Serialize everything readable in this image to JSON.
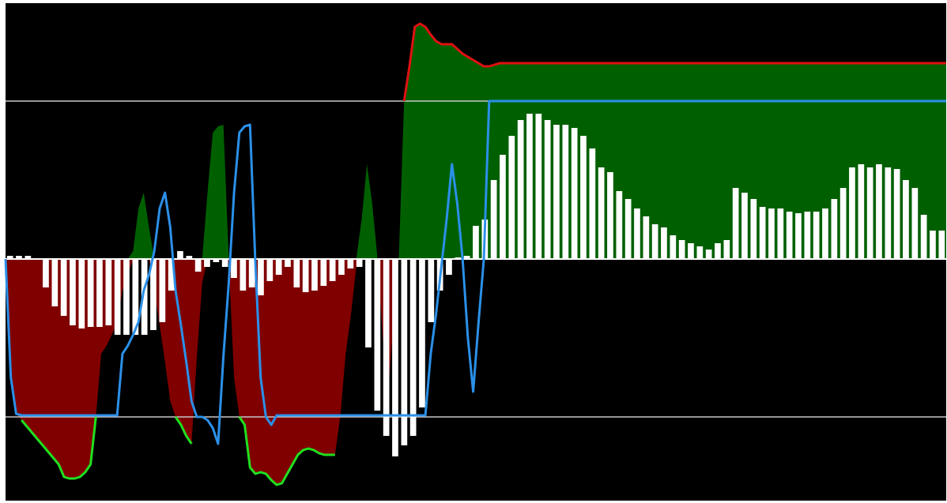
{
  "chart_data": {
    "type": "area",
    "grid": false,
    "legend": "none",
    "ylim": [
      -150,
      150
    ],
    "reference_lines": [
      100,
      -100
    ],
    "colors": {
      "background": "#000000",
      "positive_fill": "#006000",
      "negative_fill": "#800000",
      "main_line": "#2b90e8",
      "overbought_line": "#e01010",
      "oversold_line": "#20e020",
      "histogram": "#ffffff",
      "reference": "#c8c8c8",
      "zero_line": "#ffffff"
    },
    "series": [
      {
        "role": "oscillator",
        "values": [
          0,
          -75,
          -98,
          -99,
          -99,
          -99,
          -99,
          -99,
          -99,
          -99,
          -99,
          -99,
          -99,
          -99,
          -99,
          -99,
          -99,
          -99,
          -99,
          -99,
          -99,
          -99,
          -60,
          -55,
          -48,
          -40,
          -20,
          -10,
          5,
          32,
          42,
          20,
          -20,
          -42,
          -65,
          -90,
          -100,
          -100,
          -102,
          -107,
          -117,
          -62,
          -15,
          42,
          80,
          84,
          85,
          -2,
          -75,
          -100,
          -105,
          -99,
          -99,
          -99,
          -99,
          -99,
          -99,
          -99,
          -99,
          -99,
          -99,
          -99,
          -99,
          -99,
          -99,
          -99,
          -99,
          -99,
          -99,
          -99,
          -99,
          -99,
          -99,
          -99,
          -99,
          -99,
          -99,
          -99,
          -99,
          -99,
          -60,
          -35,
          -5,
          25,
          60,
          35,
          0,
          -50,
          -84,
          -40,
          0,
          100,
          100,
          100,
          100,
          100,
          100,
          100,
          100,
          100,
          100,
          100,
          100,
          100,
          100,
          100,
          100,
          100,
          100,
          100,
          100,
          100,
          100,
          100,
          100,
          100,
          100,
          100,
          100,
          100,
          100,
          100,
          100,
          100,
          100,
          100,
          100,
          100,
          100,
          100,
          100,
          100,
          100,
          100,
          100,
          100,
          100,
          100,
          100,
          100,
          100,
          100,
          100,
          100,
          100,
          100,
          100,
          100,
          100,
          100,
          100,
          100,
          100,
          100,
          100,
          100,
          100,
          100,
          100,
          100,
          100,
          100,
          100,
          100,
          100,
          100,
          100,
          100,
          100,
          100,
          100,
          100,
          100,
          100,
          100,
          100,
          100,
          100
        ]
      },
      {
        "role": "extreme_envelope",
        "values": [
          0,
          -75,
          -98,
          -102,
          -106,
          -110,
          -114,
          -118,
          -122,
          -126,
          -130,
          -138,
          -139,
          -139,
          -138,
          -135,
          -130,
          -100,
          -60,
          -55,
          -48,
          -40,
          -20,
          -10,
          5,
          32,
          42,
          20,
          -20,
          -42,
          -65,
          -90,
          -100,
          -105,
          -112,
          -117,
          -62,
          -15,
          42,
          80,
          84,
          85,
          -2,
          -75,
          -100,
          -105,
          -132,
          -136,
          -135,
          -136,
          -140,
          -143,
          -142,
          -136,
          -130,
          -124,
          -121,
          -120,
          -121,
          -123,
          -124,
          -124,
          -124,
          -99,
          -60,
          -35,
          -5,
          25,
          60,
          35,
          0,
          -50,
          -84,
          -40,
          0,
          100,
          122,
          147,
          149,
          147,
          142,
          138,
          136,
          136,
          136,
          133,
          130,
          128,
          126,
          124,
          122,
          122,
          123,
          124,
          124,
          124,
          124,
          124,
          124,
          124,
          124,
          124,
          124,
          124,
          124,
          124,
          124,
          124,
          124,
          124,
          124,
          124,
          124,
          124,
          124,
          124,
          124,
          124,
          124,
          124,
          124,
          124,
          124,
          124,
          124,
          124,
          124,
          124,
          124,
          124,
          124,
          124,
          124,
          124,
          124,
          124,
          124,
          124,
          124,
          124,
          124,
          124,
          124,
          124,
          124,
          124,
          124,
          124,
          124,
          124,
          124,
          124,
          124,
          124,
          124,
          124,
          124,
          124,
          124,
          124,
          124,
          124,
          124,
          124,
          124,
          124,
          124,
          124,
          124,
          124,
          124,
          124,
          124,
          124,
          124,
          124,
          124,
          124
        ]
      },
      {
        "role": "histogram",
        "values": [
          2,
          2,
          2,
          0,
          -18,
          -30,
          -36,
          -42,
          -44,
          -43,
          -43,
          -42,
          -48,
          -48,
          -48,
          -48,
          -45,
          -40,
          -20,
          5,
          2,
          -8,
          -5,
          -2,
          -5,
          -12,
          -20,
          -18,
          -23,
          -14,
          -10,
          -5,
          -18,
          -21,
          -20,
          -17,
          -14,
          -10,
          -6,
          -5,
          -56,
          -96,
          -112,
          -125,
          -118,
          -112,
          -94,
          -40,
          -20,
          -10,
          1,
          2,
          21,
          25,
          50,
          66,
          78,
          88,
          92,
          92,
          88,
          85,
          85,
          83,
          78,
          70,
          58,
          55,
          43,
          38,
          32,
          27,
          22,
          20,
          15,
          12,
          10,
          8,
          6,
          10,
          12,
          45,
          42,
          38,
          33,
          32,
          32,
          30,
          29,
          30,
          30,
          32,
          38,
          45,
          58,
          60,
          58,
          60,
          58,
          57,
          50,
          45,
          28,
          18,
          18
        ]
      }
    ]
  }
}
